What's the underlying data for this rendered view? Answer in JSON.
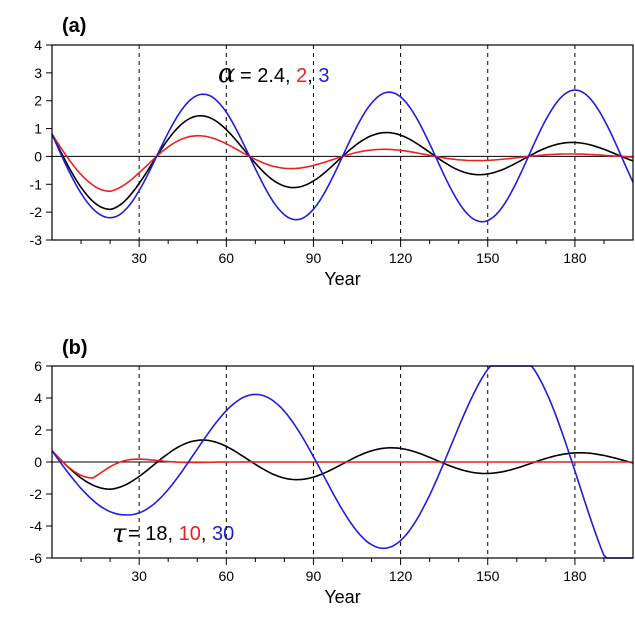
{
  "chart_data": [
    {
      "panel_label": "(a)",
      "type": "line",
      "xlabel": "Year",
      "xlim": [
        0,
        200
      ],
      "ylim": [
        -3,
        4
      ],
      "x_ticks": [
        "30",
        "60",
        "90",
        "120",
        "150",
        "180"
      ],
      "y_ticks": [
        "4",
        "3",
        "2",
        "1",
        "0",
        "-1",
        "-2",
        "-3"
      ],
      "vlines": [
        30,
        60,
        90,
        120,
        150,
        180
      ],
      "annotation": {
        "symbol": "α",
        "prefix": " = 2.4, ",
        "v1": "2",
        "sep": ", ",
        "v2": "3"
      },
      "series": [
        {
          "color": "#000000",
          "x0": 0.8,
          "amp": 1.9,
          "period": 64,
          "tau": 120,
          "t0": 20
        },
        {
          "color": "#e8231f",
          "x0": 0.8,
          "amp": 1.25,
          "period": 64,
          "tau": 60,
          "t0": 20
        },
        {
          "color": "#1f1fd8",
          "x0": 0.8,
          "amp": 2.2,
          "period": 64,
          "tau": -2000,
          "t0": 20
        }
      ]
    },
    {
      "panel_label": "(b)",
      "type": "line",
      "xlabel": "Year",
      "xlim": [
        0,
        200
      ],
      "ylim": [
        -6,
        6
      ],
      "x_ticks": [
        "30",
        "60",
        "90",
        "120",
        "150",
        "180"
      ],
      "y_ticks": [
        "6",
        "4",
        "2",
        "0",
        "-2",
        "-4",
        "-6"
      ],
      "vlines": [
        30,
        60,
        90,
        120,
        150,
        180
      ],
      "annotation": {
        "symbol": "τ",
        "prefix": " = 18, ",
        "v1": "10",
        "sep": ", ",
        "v2": "30"
      },
      "series": [
        {
          "color": "#000000",
          "x0": 0.7,
          "amp": 1.7,
          "period": 65,
          "tau": 150,
          "t0": 20
        },
        {
          "color": "#e8231f",
          "x0": 0.7,
          "amp": 1.0,
          "period": 38,
          "tau": 10,
          "t0": 14
        },
        {
          "color": "#1f1fd8",
          "x0": 0.7,
          "amp": 3.3,
          "period": 88,
          "tau": -180,
          "t0": 25
        }
      ]
    }
  ],
  "colors": {
    "red": "#e8231f",
    "blue": "#1f1fd8"
  }
}
